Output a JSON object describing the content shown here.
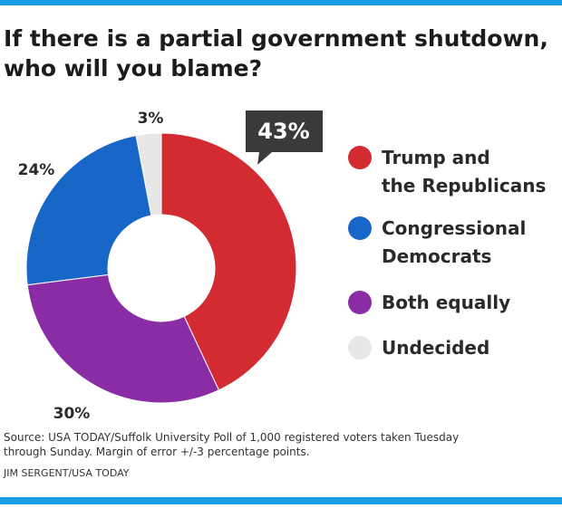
{
  "header": {
    "title_line1": "If there is a partial government shutdown,",
    "title_line2": "who will you blame?"
  },
  "chart_data": {
    "type": "pie",
    "title": "If there is a partial government shutdown, who will you blame?",
    "categories": [
      "Trump and the Republicans",
      "Congressional Democrats",
      "Both equally",
      "Undecided"
    ],
    "values": [
      43,
      24,
      30,
      3
    ],
    "data_labels": [
      "43%",
      "24%",
      "30%",
      "3%"
    ],
    "unit": "%",
    "colors": [
      "#d22c32",
      "#1966c9",
      "#8a2ca3",
      "#e7e7e7"
    ],
    "highlight": "Trump and the Republicans",
    "legend": "right"
  },
  "legend": {
    "items": [
      {
        "label_line1": "Trump and",
        "label_line2": "the Republicans",
        "color": "#d22c32"
      },
      {
        "label_line1": "Congressional",
        "label_line2": "Democrats",
        "color": "#1966c9"
      },
      {
        "label_line1": "Both equally",
        "label_line2": "",
        "color": "#8a2ca3"
      },
      {
        "label_line1": "Undecided",
        "label_line2": "",
        "color": "#e7e7e7"
      }
    ]
  },
  "footer": {
    "source_line1": "Source: USA TODAY/Suffolk University Poll of 1,000 registered voters taken Tuesday",
    "source_line2": "through Sunday. Margin of error +/-3 percentage points.",
    "credit": "JIM SERGENT/USA TODAY"
  }
}
